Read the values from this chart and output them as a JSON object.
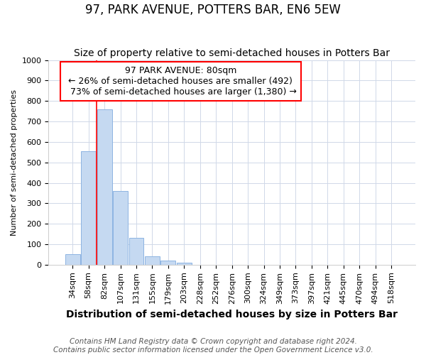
{
  "title": "97, PARK AVENUE, POTTERS BAR, EN6 5EW",
  "subtitle": "Size of property relative to semi-detached houses in Potters Bar",
  "xlabel": "Distribution of semi-detached houses by size in Potters Bar",
  "ylabel": "Number of semi-detached properties",
  "categories": [
    "34sqm",
    "58sqm",
    "82sqm",
    "107sqm",
    "131sqm",
    "155sqm",
    "179sqm",
    "203sqm",
    "228sqm",
    "252sqm",
    "276sqm",
    "300sqm",
    "324sqm",
    "349sqm",
    "373sqm",
    "397sqm",
    "421sqm",
    "445sqm",
    "470sqm",
    "494sqm",
    "518sqm"
  ],
  "values": [
    52,
    555,
    760,
    360,
    130,
    40,
    20,
    10,
    0,
    0,
    0,
    0,
    0,
    0,
    0,
    0,
    0,
    0,
    0,
    0,
    0
  ],
  "bar_color": "#c5d9f1",
  "bar_edge_color": "#8db4e2",
  "ylim": [
    0,
    1000
  ],
  "yticks": [
    0,
    100,
    200,
    300,
    400,
    500,
    600,
    700,
    800,
    900,
    1000
  ],
  "property_label": "97 PARK AVENUE: 80sqm",
  "pct_smaller": "26%",
  "count_smaller": "492",
  "pct_larger": "73%",
  "count_larger": "1,380",
  "red_line_bar_index": 2,
  "footer_line1": "Contains HM Land Registry data © Crown copyright and database right 2024.",
  "footer_line2": "Contains public sector information licensed under the Open Government Licence v3.0.",
  "background_color": "#ffffff",
  "grid_color": "#d0d8e8",
  "title_fontsize": 12,
  "subtitle_fontsize": 10,
  "xlabel_fontsize": 10,
  "ylabel_fontsize": 8,
  "tick_fontsize": 8,
  "annot_fontsize": 9,
  "footer_fontsize": 7.5
}
